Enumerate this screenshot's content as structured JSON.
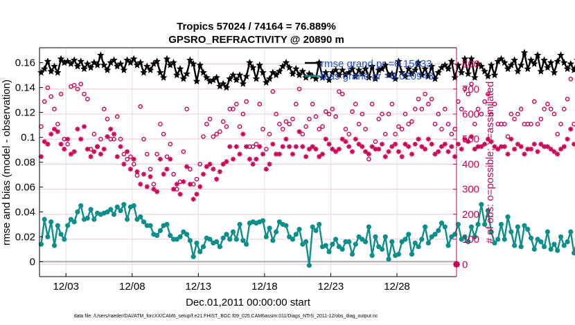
{
  "chart_data": {
    "type": "line",
    "title": "Tropics 57024 / 74164 = 76.889%",
    "subtitle": "GPSRO_REFRACTIVITY @ 20890 m",
    "xlabel": "Dec.01,2011 00:00:00 start",
    "ylabel": "rmse and bias (model - observation)",
    "y2label": "# of obs: o=possible; ×=assimilated",
    "footer": "data file: /Users/raeder/DAI/ATM_forcXX/CAM6_setup/f.e21.FHIST_BGC.f09_025.CAM6assim.011/Diags_NTrS_2011-12/obs_diag_output.nc",
    "x_ticks": [
      "12/03",
      "12/08",
      "12/13",
      "12/18",
      "12/23",
      "12/28"
    ],
    "y_ticks": [
      "0",
      "0.02",
      "0.04",
      "0.06",
      "0.08",
      "0.1",
      "0.12",
      "0.14",
      "0.16"
    ],
    "y2_ticks": [
      "0",
      "100",
      "200",
      "300",
      "400",
      "500",
      "600",
      "700",
      "800"
    ],
    "xlim": [
      1,
      32.5
    ],
    "ylim": [
      -0.012,
      0.172
    ],
    "y2lim": [
      -49,
      865
    ],
    "grid": true,
    "legend_position": "top-right",
    "x_start": 1.125,
    "x_step": 0.25,
    "series": [
      {
        "name": "rmse grand pr =0.15633",
        "axis": "left",
        "color": "#000000",
        "marker": "star",
        "values": [
          0.152,
          0.155,
          0.161,
          0.153,
          0.157,
          0.152,
          0.163,
          0.16,
          0.161,
          0.159,
          0.162,
          0.157,
          0.161,
          0.155,
          0.159,
          0.156,
          0.16,
          0.158,
          0.166,
          0.158,
          0.154,
          0.16,
          0.162,
          0.157,
          0.159,
          0.154,
          0.162,
          0.16,
          0.163,
          0.158,
          0.16,
          0.152,
          0.157,
          0.154,
          0.159,
          0.161,
          0.152,
          0.148,
          0.163,
          0.158,
          0.16,
          0.15,
          0.155,
          0.147,
          0.151,
          0.162,
          0.159,
          0.145,
          0.158,
          0.152,
          0.148,
          0.145,
          0.146,
          0.148,
          0.141,
          0.143,
          0.14,
          0.147,
          0.15,
          0.146,
          0.15,
          0.143,
          0.149,
          0.16,
          0.156,
          0.147,
          0.158,
          0.152,
          0.144,
          0.147,
          0.152,
          0.15,
          0.153,
          0.157,
          0.16,
          0.156,
          0.151,
          0.155,
          0.15,
          0.153,
          0.148,
          0.151,
          0.149,
          0.147,
          0.16,
          0.148,
          0.152,
          0.146,
          0.152,
          0.154,
          0.15,
          0.154,
          0.15,
          0.152,
          0.155,
          0.149,
          0.154,
          0.151,
          0.155,
          0.148,
          0.157,
          0.147,
          0.154,
          0.155,
          0.158,
          0.15,
          0.151,
          0.147,
          0.161,
          0.152,
          0.149,
          0.155,
          0.151,
          0.154,
          0.16,
          0.15,
          0.155,
          0.149,
          0.157,
          0.147,
          0.152,
          0.156,
          0.158,
          0.155,
          0.161,
          0.148,
          0.158,
          0.152,
          0.163,
          0.151,
          0.163,
          0.148,
          0.159,
          0.157,
          0.153,
          0.149,
          0.158,
          0.15,
          0.161,
          0.163,
          0.16,
          0.155,
          0.158,
          0.162,
          0.153,
          0.158,
          0.168,
          0.155,
          0.162,
          0.159,
          0.166,
          0.153,
          0.162,
          0.156,
          0.16,
          0.152,
          0.161,
          0.166,
          0.16,
          0.155,
          0.159,
          0.154,
          0.162,
          0.16,
          0.158,
          0.16,
          0.157,
          0.155,
          0.162,
          0.158,
          0.165,
          0.163,
          0.168,
          0.157,
          0.164,
          0.16,
          0.158,
          0.163,
          0.154,
          0.17,
          0.157,
          0.164,
          0.156,
          0.161,
          0.166,
          0.159,
          0.168,
          0.16,
          0.17,
          0.164,
          0.168,
          0.167,
          0.163,
          0.161
        ]
      },
      {
        "name": "bias grand pr =0.020948",
        "axis": "left",
        "color": "#0c8f8a",
        "marker": "circle",
        "values": [
          0.014,
          0.034,
          0.02,
          0.032,
          0.013,
          0.029,
          0.022,
          0.018,
          0.029,
          0.034,
          0.032,
          0.04,
          0.045,
          0.034,
          0.035,
          0.042,
          0.034,
          0.039,
          0.038,
          0.039,
          0.04,
          0.042,
          0.038,
          0.044,
          0.041,
          0.046,
          0.034,
          0.044,
          0.045,
          0.034,
          0.036,
          0.032,
          0.029,
          0.029,
          0.022,
          0.021,
          0.025,
          0.029,
          0.03,
          0.021,
          0.018,
          0.018,
          0.02,
          0.024,
          0.022,
          0.017,
          0.004,
          0.015,
          0.008,
          0.012,
          0.019,
          0.018,
          0.015,
          0.016,
          0.012,
          0.019,
          0.022,
          0.018,
          0.024,
          0.018,
          0.03,
          0.017,
          0.014,
          0.031,
          0.032,
          0.031,
          0.032,
          0.033,
          0.02,
          0.027,
          0.017,
          0.024,
          0.032,
          0.03,
          0.029,
          0.02,
          0.018,
          0.022,
          0.026,
          0.014,
          0.016,
          -0.003,
          0.028,
          0.025,
          0.03,
          0.012,
          0.013,
          0.008,
          0.014,
          0.018,
          0.012,
          0.01,
          0.016,
          0.016,
          0.006,
          0.014,
          0.02,
          0.018,
          0.016,
          0.028,
          0.005,
          0.02,
          0.012,
          0.01,
          0.02,
          0.002,
          0.016,
          0.005,
          0.006,
          0.016,
          0.018,
          0.022,
          0.006,
          0.015,
          0.012,
          0.018,
          0.028,
          0.015,
          0.02,
          0.022,
          0.025,
          0.031,
          0.028,
          0.013,
          0.02,
          0.022,
          0.03,
          0.018,
          0.02,
          0.016,
          0.028,
          0.02,
          0.03,
          0.046,
          0.03,
          0.041,
          0.024,
          0.015,
          0.018,
          0.03,
          0.018,
          0.036,
          0.024,
          0.013,
          0.028,
          0.012,
          0.029,
          0.026,
          0.019,
          0.01,
          0.018,
          0.016,
          0.012,
          0.024,
          0.01,
          0.014,
          0.009,
          0.02,
          0.013,
          0.016,
          0.024,
          0.007,
          0.018,
          0.012,
          0.01,
          0.018,
          0.004,
          0.016,
          0.012,
          0.008,
          0.002,
          0.006,
          0.002,
          0.018,
          0.004,
          0.008,
          0.004,
          0.008,
          0.008,
          0.01,
          0.003,
          -0.004,
          0.004,
          0.01,
          0.014,
          0.018,
          0.004,
          0.02,
          0.026,
          0.018,
          0.018,
          0.008,
          0.017,
          0.024,
          0.012,
          0.012,
          0.02,
          -0.012
        ]
      },
      {
        "name": "obs possible",
        "axis": "right",
        "color": "#cc0055",
        "marker": "open-circle",
        "values": [
          550,
          650,
          705,
          670,
          620,
          560,
          680,
          500,
          480,
          710,
          715,
          700,
          720,
          680,
          660,
          460,
          520,
          470,
          500,
          620,
          580,
          500,
          500,
          590,
          500,
          440,
          420,
          430,
          400,
          355,
          630,
          500,
          440,
          380,
          320,
          440,
          560,
          520,
          430,
          480,
          360,
          300,
          330,
          450,
          620,
          380,
          320,
          340,
          400,
          510,
          560,
          580,
          510,
          520,
          530,
          570,
          550,
          620,
          620,
          640,
          550,
          600,
          650,
          470,
          470,
          480,
          640,
          540,
          460,
          520,
          690,
          600,
          560,
          540,
          570,
          560,
          580,
          640,
          700,
          520,
          550,
          580,
          640,
          590,
          540,
          550,
          610,
          600,
          620,
          590,
          690,
          680,
          540,
          520,
          610,
          640,
          560,
          600,
          540,
          420,
          640,
          490,
          580,
          600,
          520,
          600,
          640,
          520,
          550,
          540,
          600,
          560,
          570,
          620,
          660,
          620,
          680,
          640,
          660,
          560,
          600,
          540,
          620,
          560,
          520,
          540,
          650,
          620,
          700,
          680,
          720,
          560,
          620,
          600,
          650,
          680,
          600,
          640,
          560,
          560,
          560,
          510,
          600,
          580,
          600,
          620,
          560,
          560,
          560,
          650,
          560,
          580,
          620,
          640,
          620,
          600,
          520,
          560,
          620,
          660,
          740,
          560,
          560,
          500,
          560,
          600,
          580,
          540,
          560,
          460,
          430,
          510,
          530,
          510,
          520,
          560,
          480,
          520,
          470,
          450,
          460,
          420,
          400,
          420,
          430,
          460,
          460,
          460,
          480,
          500
        ]
      },
      {
        "name": "obs assimilated",
        "axis": "right",
        "color": "#cc0055",
        "marker": "asterisk",
        "values": [
          430,
          490,
          480,
          520,
          540,
          530,
          480,
          460,
          500,
          440,
          450,
          540,
          500,
          550,
          460,
          430,
          450,
          470,
          440,
          460,
          510,
          540,
          520,
          430,
          470,
          400,
          450,
          380,
          420,
          370,
          320,
          360,
          310,
          350,
          300,
          290,
          420,
          360,
          380,
          420,
          300,
          320,
          280,
          330,
          390,
          320,
          260,
          280,
          310,
          360,
          390,
          400,
          380,
          340,
          370,
          400,
          410,
          470,
          420,
          470,
          440,
          520,
          470,
          420,
          400,
          420,
          470,
          440,
          380,
          400,
          480,
          440,
          440,
          470,
          500,
          470,
          440,
          470,
          530,
          470,
          430,
          460,
          470,
          460,
          430,
          440,
          500,
          480,
          460,
          450,
          460,
          500,
          490,
          470,
          450,
          500,
          480,
          470,
          450,
          440,
          470,
          460,
          460,
          480,
          430,
          450,
          470,
          480,
          450,
          430,
          480,
          470,
          440,
          480,
          500,
          470,
          460,
          500,
          480,
          440,
          450,
          470,
          480,
          450,
          470,
          430,
          480,
          460,
          500,
          490,
          510,
          460,
          470,
          470,
          480,
          500,
          490,
          470,
          460,
          470,
          470,
          440,
          500,
          460,
          480,
          470,
          440,
          460,
          460,
          480,
          450,
          480,
          470,
          470,
          460,
          450,
          440,
          460,
          470,
          500,
          540,
          480,
          460,
          440,
          470,
          480,
          440,
          460,
          470,
          400,
          380,
          420,
          440,
          430,
          420,
          400,
          360,
          360,
          340,
          300,
          310,
          320,
          270,
          330,
          350,
          360,
          360,
          360,
          370,
          380
        ]
      }
    ]
  }
}
